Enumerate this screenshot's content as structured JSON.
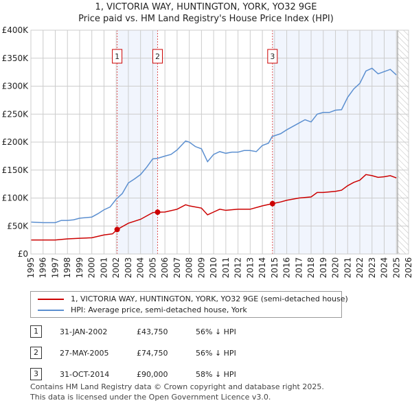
{
  "chart_data": {
    "type": "line",
    "title": "1, VICTORIA WAY, HUNTINGTON, YORK, YO32 9GE",
    "subtitle": "Price paid vs. HM Land Registry's House Price Index (HPI)",
    "xlim": [
      1995,
      2026
    ],
    "ylim": [
      0,
      400000
    ],
    "y_ticks": [
      "£0",
      "£50K",
      "£100K",
      "£150K",
      "£200K",
      "£250K",
      "£300K",
      "£350K",
      "£400K"
    ],
    "x_ticks": [
      "1995",
      "1996",
      "1997",
      "1998",
      "1999",
      "2000",
      "2001",
      "2002",
      "2003",
      "2004",
      "2005",
      "2006",
      "2007",
      "2008",
      "2009",
      "2010",
      "2011",
      "2012",
      "2013",
      "2014",
      "2015",
      "2016",
      "2017",
      "2018",
      "2019",
      "2020",
      "2021",
      "2022",
      "2023",
      "2024",
      "2025",
      "2026"
    ],
    "series": [
      {
        "name": "1, VICTORIA WAY, HUNTINGTON, YORK, YO32 9GE (semi-detached house)",
        "color": "#cc0000",
        "x": [
          1995,
          1997,
          1998,
          1999,
          2000,
          2001,
          2001.7,
          2002.08,
          2003,
          2004,
          2005,
          2005.4,
          2006,
          2007,
          2007.7,
          2008,
          2009,
          2009.5,
          2010,
          2010.5,
          2011,
          2012,
          2013,
          2014,
          2014.83,
          2015.5,
          2016,
          2017,
          2018,
          2018.5,
          2019,
          2020,
          2020.5,
          2021,
          2021.5,
          2022,
          2022.5,
          2023,
          2023.5,
          2024,
          2024.5,
          2025
        ],
        "y": [
          25,
          25,
          27,
          28,
          29,
          34,
          36,
          43.75,
          55,
          62,
          74,
          74.75,
          75,
          80,
          88,
          86,
          82,
          70,
          75,
          80,
          78,
          80,
          80,
          86,
          90,
          93,
          96,
          100,
          102,
          110,
          110,
          112,
          114,
          122,
          128,
          132,
          142,
          140,
          137,
          138,
          140,
          136
        ]
      },
      {
        "name": "HPI: Average price, semi-detached house, York",
        "color": "#5b8fd0",
        "x": [
          1995,
          1996,
          1997,
          1997.5,
          1998,
          1998.5,
          1999,
          2000,
          2000.5,
          2001,
          2001.5,
          2002,
          2002.5,
          2003,
          2003.5,
          2004,
          2004.5,
          2005,
          2005.4,
          2006,
          2006.5,
          2007,
          2007.7,
          2008,
          2008.5,
          2009,
          2009.5,
          2010,
          2010.5,
          2011,
          2011.5,
          2012,
          2012.5,
          2013,
          2013.5,
          2014,
          2014.5,
          2014.8,
          2015.5,
          2016,
          2016.5,
          2017,
          2017.5,
          2018,
          2018.5,
          2019,
          2019.5,
          2020,
          2020.5,
          2021,
          2021.5,
          2022,
          2022.5,
          2023,
          2023.5,
          2024,
          2024.5,
          2025
        ],
        "y": [
          57,
          56,
          56,
          60,
          60,
          61,
          64,
          66,
          72,
          79,
          84,
          98,
          108,
          127,
          134,
          142,
          155,
          170,
          171,
          175,
          178,
          186,
          202,
          200,
          192,
          188,
          165,
          178,
          183,
          180,
          182,
          182,
          185,
          185,
          183,
          194,
          198,
          210,
          215,
          222,
          228,
          234,
          240,
          236,
          250,
          253,
          253,
          257,
          258,
          280,
          295,
          305,
          327,
          332,
          322,
          326,
          330,
          320
        ]
      }
    ],
    "y_units": "thousands GBP",
    "shaded_periods": [
      [
        2002.08,
        2005.4
      ],
      [
        2014.83,
        2025.0
      ]
    ],
    "future_hatch_from": 2025.1,
    "markers": [
      {
        "label": "1",
        "x": 2002.08,
        "y": 43.75
      },
      {
        "label": "2",
        "x": 2005.4,
        "y": 74.75
      },
      {
        "label": "3",
        "x": 2014.83,
        "y": 90
      }
    ],
    "legend_placement": "below"
  },
  "transactions": [
    {
      "num": "1",
      "date": "31-JAN-2002",
      "price": "£43,750",
      "hpi": "56% ↓ HPI"
    },
    {
      "num": "2",
      "date": "27-MAY-2005",
      "price": "£74,750",
      "hpi": "56% ↓ HPI"
    },
    {
      "num": "3",
      "date": "31-OCT-2014",
      "price": "£90,000",
      "hpi": "58% ↓ HPI"
    }
  ],
  "footer": [
    "Contains HM Land Registry data © Crown copyright and database right 2025.",
    "This data is licensed under the Open Government Licence v3.0."
  ]
}
